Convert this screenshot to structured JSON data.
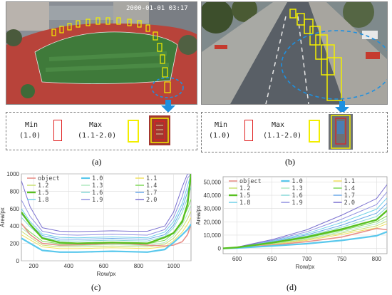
{
  "photo_a": {
    "timestamp": "2000-01-01 03:17"
  },
  "legend_a": {
    "min_label": "Min",
    "min_value": "(1.0)",
    "max_label": "Max",
    "max_value": "(1.1-2.0)",
    "min_color": "#e02020",
    "max_color": "#f2ee00"
  },
  "legend_b": {
    "min_label": "Min",
    "min_value": "(1.0)",
    "max_label": "Max",
    "max_value": "(1.1-2.0)",
    "min_color": "#e02020",
    "max_color": "#f2ee00"
  },
  "captions": {
    "a": "(a)",
    "b": "(b)",
    "c": "(c)",
    "d": "(d)"
  },
  "chart_data": [
    {
      "type": "line",
      "panel": "(c)",
      "xlabel": "Row/px",
      "ylabel": "Area/px",
      "xlim": [
        130,
        1100
      ],
      "ylim": [
        0,
        1000
      ],
      "xticks": [
        200,
        400,
        600,
        800,
        1000
      ],
      "yticks": [
        0,
        200,
        400,
        600,
        800,
        1000
      ],
      "grid": true,
      "legend": {
        "placement": "top",
        "columns": 3
      },
      "x": [
        130,
        180,
        250,
        350,
        450,
        550,
        650,
        750,
        850,
        950,
        1000,
        1050,
        1080,
        1100
      ],
      "series": [
        {
          "name": "object",
          "color": "#e8918a",
          "width": 1.6,
          "values": [
            430,
            300,
            200,
            180,
            185,
            190,
            200,
            195,
            180,
            170,
            180,
            220,
            300,
            420
          ]
        },
        {
          "name": "1.0",
          "color": "#5ac8ec",
          "width": 2.2,
          "values": [
            260,
            200,
            120,
            100,
            100,
            105,
            110,
            105,
            100,
            130,
            210,
            300,
            360,
            420
          ]
        },
        {
          "name": "1.1",
          "color": "#f0e060",
          "width": 1,
          "values": [
            300,
            240,
            160,
            140,
            140,
            145,
            150,
            145,
            140,
            160,
            230,
            330,
            420,
            500
          ]
        },
        {
          "name": "1.2",
          "color": "#c8e070",
          "width": 1,
          "values": [
            340,
            270,
            180,
            160,
            160,
            165,
            170,
            165,
            160,
            190,
            260,
            380,
            480,
            570
          ]
        },
        {
          "name": "1.3",
          "color": "#b0e8c0",
          "width": 1,
          "values": [
            380,
            300,
            200,
            175,
            175,
            180,
            185,
            180,
            175,
            210,
            290,
            420,
            540,
            640
          ]
        },
        {
          "name": "1.4",
          "color": "#7ed858",
          "width": 1,
          "values": [
            420,
            330,
            225,
            195,
            195,
            200,
            205,
            200,
            195,
            235,
            320,
            470,
            600,
            710
          ]
        },
        {
          "name": "1.5",
          "color": "#58c020",
          "width": 2.4,
          "values": [
            560,
            420,
            260,
            210,
            200,
            205,
            210,
            205,
            200,
            270,
            320,
            450,
            650,
            1000
          ]
        },
        {
          "name": "1.6",
          "color": "#88d8d8",
          "width": 1,
          "values": [
            500,
            390,
            270,
            230,
            228,
            232,
            238,
            232,
            228,
            280,
            380,
            560,
            720,
            850
          ]
        },
        {
          "name": "1.7",
          "color": "#6aa8e8",
          "width": 1,
          "values": [
            540,
            420,
            290,
            250,
            248,
            252,
            258,
            252,
            248,
            300,
            410,
            610,
            790,
            930
          ]
        },
        {
          "name": "1.8",
          "color": "#70d0e8",
          "width": 1,
          "values": [
            600,
            450,
            310,
            270,
            265,
            270,
            275,
            270,
            265,
            330,
            450,
            660,
            860,
            1000
          ]
        },
        {
          "name": "1.9",
          "color": "#9090e0",
          "width": 1,
          "values": [
            700,
            510,
            340,
            300,
            295,
            300,
            305,
            300,
            295,
            360,
            500,
            740,
            950,
            1000
          ]
        },
        {
          "name": "2.0",
          "color": "#7a70d0",
          "width": 1,
          "values": [
            920,
            620,
            380,
            340,
            335,
            340,
            345,
            340,
            340,
            400,
            560,
            850,
            1000,
            1000
          ]
        }
      ]
    },
    {
      "type": "line",
      "panel": "(d)",
      "xlabel": "Row/px",
      "ylabel": "Area/px",
      "xlim": [
        580,
        815
      ],
      "ylim": [
        -4000,
        54000
      ],
      "xticks": [
        600,
        650,
        700,
        750,
        800
      ],
      "yticks": [
        0,
        10000,
        20000,
        30000,
        40000,
        50000
      ],
      "ytick_labels": [
        "0",
        "10,000",
        "20,000",
        "30,000",
        "40,000",
        "50,000"
      ],
      "grid": true,
      "legend": {
        "placement": "top",
        "columns": 3
      },
      "x": [
        580,
        600,
        650,
        700,
        750,
        800,
        815
      ],
      "series": [
        {
          "name": "object",
          "color": "#e8918a",
          "width": 1.6,
          "values": [
            0,
            400,
            2500,
            5000,
            8500,
            15000,
            14000
          ]
        },
        {
          "name": "1.0",
          "color": "#5ac8ec",
          "width": 2.2,
          "values": [
            0,
            300,
            1800,
            3500,
            6000,
            9500,
            12500
          ]
        },
        {
          "name": "1.1",
          "color": "#f0e060",
          "width": 1,
          "values": [
            0,
            500,
            3000,
            6000,
            10500,
            15500,
            18500
          ]
        },
        {
          "name": "1.2",
          "color": "#c8e070",
          "width": 1,
          "values": [
            0,
            550,
            3300,
            6700,
            11500,
            17000,
            20500
          ]
        },
        {
          "name": "1.3",
          "color": "#b0e8c0",
          "width": 1,
          "values": [
            0,
            600,
            3600,
            7300,
            12500,
            18500,
            22500
          ]
        },
        {
          "name": "1.4",
          "color": "#7ed858",
          "width": 1,
          "values": [
            0,
            650,
            3900,
            7900,
            13500,
            20000,
            24500
          ]
        },
        {
          "name": "1.5",
          "color": "#58c020",
          "width": 2.4,
          "values": [
            0,
            700,
            4200,
            8500,
            14500,
            21500,
            28500
          ]
        },
        {
          "name": "1.6",
          "color": "#88d8d8",
          "width": 1,
          "values": [
            0,
            750,
            4600,
            9300,
            16000,
            24000,
            31000
          ]
        },
        {
          "name": "1.7",
          "color": "#6aa8e8",
          "width": 1,
          "values": [
            0,
            800,
            5000,
            10200,
            17500,
            26500,
            34000
          ]
        },
        {
          "name": "1.8",
          "color": "#70d0e8",
          "width": 1,
          "values": [
            0,
            850,
            5500,
            11200,
            19500,
            29500,
            38000
          ]
        },
        {
          "name": "1.9",
          "color": "#9090e0",
          "width": 1,
          "values": [
            0,
            900,
            6000,
            12500,
            22000,
            33000,
            42500
          ]
        },
        {
          "name": "2.0",
          "color": "#7a70d0",
          "width": 1,
          "values": [
            0,
            950,
            6600,
            14000,
            25000,
            37500,
            48000
          ]
        }
      ]
    }
  ]
}
